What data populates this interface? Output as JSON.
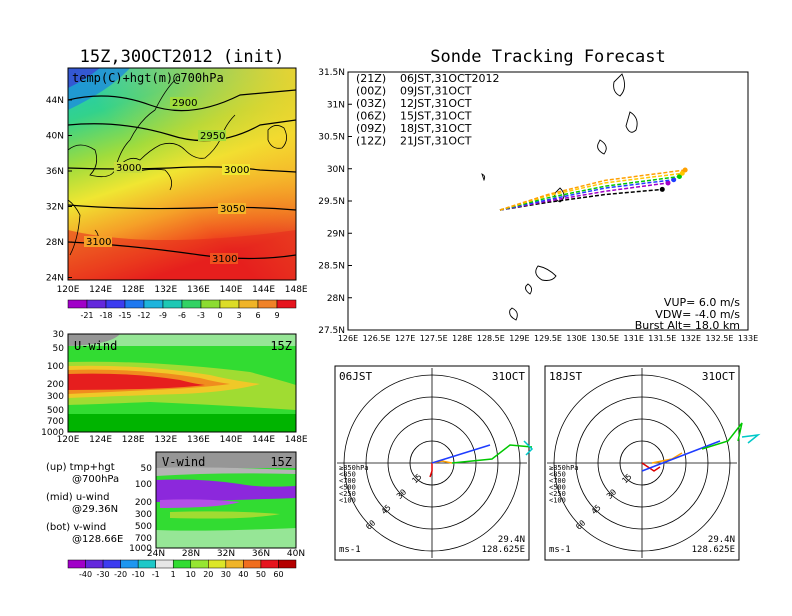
{
  "colors": {
    "green": "#00c800",
    "red": "#e00000",
    "blue": "#1e3cff",
    "orange": "#ffa000",
    "magenta": "#a000c8",
    "cyan": "#00c8c8",
    "gray": "#969696",
    "purple": "#8200dc"
  },
  "map_panel": {
    "title": "15Z,30OCT2012 (init)",
    "label": "temp(C)+hgt(m)@700hPa",
    "lat_labels": [
      "44N",
      "40N",
      "36N",
      "32N",
      "28N",
      "24N"
    ],
    "lon_labels": [
      "120E",
      "124E",
      "128E",
      "132E",
      "136E",
      "140E",
      "144E",
      "148E"
    ],
    "contour_labels": [
      "2900",
      "2950",
      "3000",
      "3000",
      "3050",
      "3100",
      "3100"
    ],
    "colorbar_labels": [
      "-21",
      "-18",
      "-15",
      "-12",
      "-9",
      "-6",
      "-3",
      "0",
      "3",
      "6",
      "9"
    ]
  },
  "uwind_panel": {
    "label": "U-wind",
    "time": "15Z",
    "p_labels": [
      "30",
      "50",
      "100",
      "200",
      "300",
      "500",
      "700",
      "1000"
    ],
    "lon_labels": [
      "120E",
      "124E",
      "128E",
      "132E",
      "136E",
      "140E",
      "144E",
      "148E"
    ]
  },
  "vwind_panel": {
    "label": "V-wind",
    "time": "15Z",
    "p_labels": [
      "50",
      "100",
      "200",
      "300",
      "500",
      "700",
      "1000"
    ],
    "lat_labels": [
      "24N",
      "28N",
      "32N",
      "36N",
      "40N"
    ]
  },
  "legend_notes": [
    {
      "l1": "(up) tmp+hgt",
      "l2": "@700hPa"
    },
    {
      "l1": "(mid) u-wind",
      "l2": "@29.36N"
    },
    {
      "l1": "(bot) v-wind",
      "l2": "@128.66E"
    }
  ],
  "wind_colorbar_labels": [
    "-40",
    "-30",
    "-20",
    "-10",
    "-1",
    "1",
    "10",
    "20",
    "30",
    "40",
    "50",
    "60"
  ],
  "track_panel": {
    "title": "Sonde Tracking Forecast",
    "lat_labels": [
      "31.5N",
      "31N",
      "30.5N",
      "30N",
      "29.5N",
      "29N",
      "28.5N",
      "28N",
      "27.5N"
    ],
    "lon_labels": [
      "126E",
      "126.5E",
      "127E",
      "127.5E",
      "128E",
      "128.5E",
      "129E",
      "129.5E",
      "130E",
      "130.5E",
      "131E",
      "131.5E",
      "132E",
      "132.5E",
      "133E"
    ],
    "legend": [
      {
        "run": "(21Z)",
        "time": "06JST,31OCT2012",
        "color": "#000000"
      },
      {
        "run": "(00Z)",
        "time": "09JST,31OCT",
        "color": "#a000c8"
      },
      {
        "run": "(03Z)",
        "time": "12JST,31OCT",
        "color": "#1e3cff"
      },
      {
        "run": "(06Z)",
        "time": "15JST,31OCT",
        "color": "#00c800"
      },
      {
        "run": "(09Z)",
        "time": "18JST,31OCT",
        "color": "#ffc800"
      },
      {
        "run": "(12Z)",
        "time": "21JST,31OCT",
        "color": "#ffa000"
      }
    ],
    "params": [
      "VUP= 6.0 m/s",
      "VDW= -4.0 m/s",
      "Burst Alt= 18.0 km"
    ]
  },
  "chart_data": [
    {
      "type": "line",
      "title": "Sonde Tracking Forecast",
      "xlim": [
        126,
        133
      ],
      "ylim": [
        27.5,
        31.5
      ],
      "series": [
        {
          "name": "(21Z) 06JST,31OCT2012",
          "x": [
            128.66,
            129.5,
            130.5,
            131.5
          ],
          "y": [
            29.36,
            29.48,
            29.6,
            29.68
          ]
        },
        {
          "name": "(00Z) 09JST,31OCT",
          "x": [
            128.66,
            129.5,
            130.5,
            131.6
          ],
          "y": [
            29.36,
            29.5,
            29.65,
            29.78
          ]
        },
        {
          "name": "(03Z) 12JST,31OCT",
          "x": [
            128.66,
            129.5,
            130.5,
            131.7
          ],
          "y": [
            29.36,
            29.52,
            29.7,
            29.83
          ]
        },
        {
          "name": "(06Z) 15JST,31OCT",
          "x": [
            128.66,
            129.5,
            130.5,
            131.8
          ],
          "y": [
            29.36,
            29.55,
            29.73,
            29.88
          ]
        },
        {
          "name": "(09Z) 18JST,31OCT",
          "x": [
            128.66,
            129.5,
            130.5,
            131.85
          ],
          "y": [
            29.36,
            29.58,
            29.78,
            29.93
          ]
        },
        {
          "name": "(12Z) 21JST,31OCT",
          "x": [
            128.66,
            129.5,
            130.5,
            131.9
          ],
          "y": [
            29.36,
            29.6,
            29.82,
            29.98
          ]
        }
      ]
    },
    {
      "type": "line",
      "title": "06JST 31OCT",
      "location": "29.4N 128.625E",
      "unit": "ms-1",
      "ring_labels": [
        "15",
        "30",
        "45",
        "60"
      ],
      "level_labels": [
        "≥850hPa",
        "<850",
        "<700",
        "<500",
        "<250",
        "<100"
      ]
    },
    {
      "type": "line",
      "title": "18JST 31OCT",
      "location": "29.4N 128.625E",
      "unit": "ms-1",
      "ring_labels": [
        "15",
        "30",
        "45",
        "60"
      ],
      "level_labels": [
        "≥850hPa",
        "<850",
        "<700",
        "<500",
        "<250",
        "<100"
      ]
    }
  ]
}
